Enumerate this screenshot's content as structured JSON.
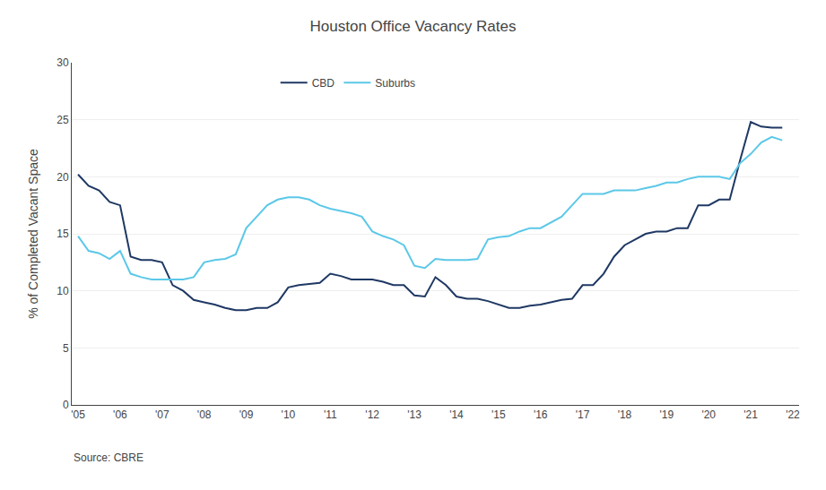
{
  "chart_data": {
    "type": "line",
    "title": "Houston Office Vacancy Rates",
    "ylabel": "% of Completed Vacant Space",
    "annotations": [
      "Source: CBRE"
    ],
    "xlim": [
      2004.85,
      2022.15
    ],
    "xticks": [
      {
        "value": 2005,
        "label": "'05"
      },
      {
        "value": 2006,
        "label": "'06"
      },
      {
        "value": 2007,
        "label": "'07"
      },
      {
        "value": 2008,
        "label": "'08"
      },
      {
        "value": 2009,
        "label": "'09"
      },
      {
        "value": 2010,
        "label": "'10"
      },
      {
        "value": 2011,
        "label": "'11"
      },
      {
        "value": 2012,
        "label": "'12"
      },
      {
        "value": 2013,
        "label": "'13"
      },
      {
        "value": 2014,
        "label": "'14"
      },
      {
        "value": 2015,
        "label": "'15"
      },
      {
        "value": 2016,
        "label": "'16"
      },
      {
        "value": 2017,
        "label": "'17"
      },
      {
        "value": 2018,
        "label": "'18"
      },
      {
        "value": 2019,
        "label": "'19"
      },
      {
        "value": 2020,
        "label": "'20"
      },
      {
        "value": 2021,
        "label": "'21"
      },
      {
        "value": 2022,
        "label": "'22"
      }
    ],
    "ylim": [
      0,
      30
    ],
    "yticks": [
      0,
      5,
      10,
      15,
      20,
      25,
      30
    ],
    "grid": "y",
    "legend": "upper center",
    "x": [
      2005.0,
      2005.25,
      2005.5,
      2005.75,
      2006.0,
      2006.25,
      2006.5,
      2006.75,
      2007.0,
      2007.25,
      2007.5,
      2007.75,
      2008.0,
      2008.25,
      2008.5,
      2008.75,
      2009.0,
      2009.25,
      2009.5,
      2009.75,
      2010.0,
      2010.25,
      2010.5,
      2010.75,
      2011.0,
      2011.25,
      2011.5,
      2011.75,
      2012.0,
      2012.25,
      2012.5,
      2012.75,
      2013.0,
      2013.25,
      2013.5,
      2013.75,
      2014.0,
      2014.25,
      2014.5,
      2014.75,
      2015.0,
      2015.25,
      2015.5,
      2015.75,
      2016.0,
      2016.25,
      2016.5,
      2016.75,
      2017.0,
      2017.25,
      2017.5,
      2017.75,
      2018.0,
      2018.25,
      2018.5,
      2018.75,
      2019.0,
      2019.25,
      2019.5,
      2019.75,
      2020.0,
      2020.25,
      2020.5,
      2020.75,
      2021.0,
      2021.25,
      2021.5,
      2021.75
    ],
    "series": [
      {
        "name": "CBD",
        "color": "#1F3864",
        "values": [
          20.2,
          19.2,
          18.8,
          17.8,
          17.5,
          13.0,
          12.7,
          12.7,
          12.5,
          10.5,
          10.0,
          9.2,
          9.0,
          8.8,
          8.5,
          8.3,
          8.3,
          8.5,
          8.5,
          9.0,
          10.3,
          10.5,
          10.6,
          10.7,
          11.5,
          11.3,
          11.0,
          11.0,
          11.0,
          10.8,
          10.5,
          10.5,
          9.6,
          9.5,
          11.2,
          10.5,
          9.5,
          9.3,
          9.3,
          9.1,
          8.8,
          8.5,
          8.5,
          8.7,
          8.8,
          9.0,
          9.2,
          9.3,
          10.5,
          10.5,
          11.5,
          13.0,
          14.0,
          14.5,
          15.0,
          15.2,
          15.2,
          15.5,
          15.5,
          17.5,
          17.5,
          18.0,
          18.0,
          21.5,
          24.8,
          24.4,
          24.3,
          24.3
        ]
      },
      {
        "name": "Suburbs",
        "color": "#5BC8E8",
        "values": [
          14.8,
          13.5,
          13.3,
          12.8,
          13.5,
          11.5,
          11.2,
          11.0,
          11.0,
          11.0,
          11.0,
          11.2,
          12.5,
          12.7,
          12.8,
          13.2,
          15.5,
          16.5,
          17.5,
          18.0,
          18.2,
          18.2,
          18.0,
          17.5,
          17.2,
          17.0,
          16.8,
          16.5,
          15.2,
          14.8,
          14.5,
          14.0,
          12.2,
          12.0,
          12.8,
          12.7,
          12.7,
          12.7,
          12.8,
          14.5,
          14.7,
          14.8,
          15.2,
          15.5,
          15.5,
          16.0,
          16.5,
          17.5,
          18.5,
          18.5,
          18.5,
          18.8,
          18.8,
          18.8,
          19.0,
          19.2,
          19.5,
          19.5,
          19.8,
          20.0,
          20.0,
          20.0,
          19.8,
          21.2,
          22.0,
          23.0,
          23.5,
          23.2
        ]
      }
    ]
  }
}
